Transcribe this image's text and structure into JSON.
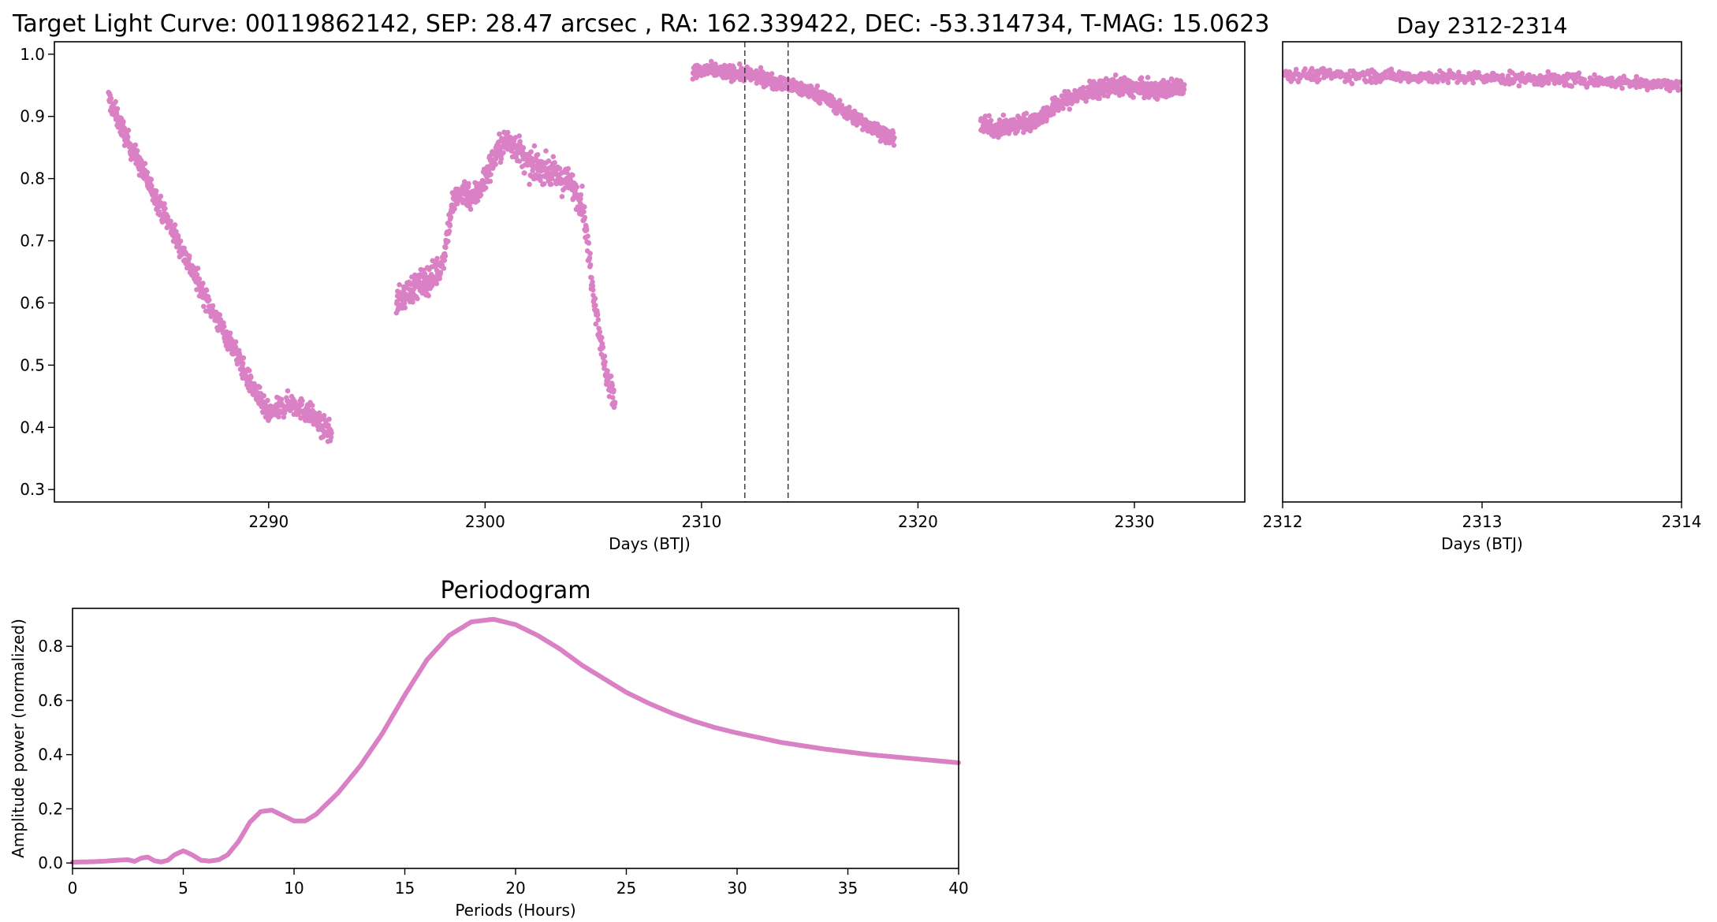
{
  "colors": {
    "points": "#da80c4",
    "axes": "#000000",
    "background": "#ffffff"
  },
  "chart_data": [
    {
      "id": "light-curve",
      "type": "scatter",
      "title": "Target Light Curve: 00119862142, SEP: 28.47 arcsec , RA: 162.339422, DEC: -53.314734, T-MAG: 15.0623",
      "xlabel": "Days (BTJ)",
      "ylabel": "",
      "xlim": [
        2280.1,
        2335.1
      ],
      "ylim": [
        0.28,
        1.02
      ],
      "xticks": [
        2290,
        2300,
        2310,
        2320,
        2330
      ],
      "xtick_labels": [
        "2290",
        "2300",
        "2310",
        "2320",
        "2330"
      ],
      "yticks": [
        0.3,
        0.4,
        0.5,
        0.6,
        0.7,
        0.8,
        0.9,
        1.0
      ],
      "ytick_labels": [
        "0.3",
        "0.4",
        "0.5",
        "0.6",
        "0.7",
        "0.8",
        "0.9",
        "1.0"
      ],
      "vlines": [
        2312,
        2314
      ],
      "grid": false,
      "segments": [
        {
          "x": [
            2282.6,
            2283.5,
            2284.5,
            2285.5,
            2286.5,
            2287.5,
            2288.5,
            2289.0,
            2289.5,
            2290.0,
            2290.5,
            2291.0,
            2291.5,
            2292.0,
            2292.5,
            2292.9
          ],
          "y": [
            0.93,
            0.86,
            0.79,
            0.72,
            0.65,
            0.58,
            0.52,
            0.48,
            0.45,
            0.42,
            0.43,
            0.44,
            0.43,
            0.42,
            0.4,
            0.39
          ],
          "spread": 0.03
        },
        {
          "x": [
            2295.9,
            2296.5,
            2297.0,
            2297.5,
            2298.0,
            2298.5,
            2299.0,
            2299.5,
            2300.0,
            2300.5,
            2301.0,
            2301.5,
            2302.0,
            2302.5,
            2303.0,
            2303.5,
            2304.0,
            2304.5,
            2305.0,
            2305.5,
            2306.0
          ],
          "y": [
            0.6,
            0.62,
            0.63,
            0.64,
            0.66,
            0.76,
            0.78,
            0.77,
            0.8,
            0.84,
            0.86,
            0.85,
            0.82,
            0.82,
            0.81,
            0.8,
            0.79,
            0.76,
            0.62,
            0.5,
            0.44
          ],
          "spread": 0.04
        },
        {
          "x": [
            2309.6,
            2310.5,
            2311.5,
            2312.5,
            2313.5,
            2314.5,
            2315.5,
            2316.5,
            2317.5,
            2318.5,
            2318.9
          ],
          "y": [
            0.97,
            0.975,
            0.97,
            0.965,
            0.955,
            0.945,
            0.935,
            0.91,
            0.89,
            0.87,
            0.86
          ],
          "spread": 0.02
        },
        {
          "x": [
            2322.9,
            2323.5,
            2324.5,
            2325.5,
            2326.5,
            2327.5,
            2328.5,
            2329.0,
            2330.0,
            2331.0,
            2332.3
          ],
          "y": [
            0.89,
            0.88,
            0.885,
            0.895,
            0.92,
            0.935,
            0.945,
            0.95,
            0.945,
            0.94,
            0.95
          ],
          "spread": 0.025
        }
      ]
    },
    {
      "id": "zoom",
      "type": "scatter",
      "title": "Day 2312-2314",
      "xlabel": "Days (BTJ)",
      "ylabel": "",
      "xlim": [
        2312,
        2314
      ],
      "ylim": [
        0.28,
        1.02
      ],
      "xticks": [
        2312,
        2313,
        2314
      ],
      "xtick_labels": [
        "2312",
        "2313",
        "2314"
      ],
      "grid": false,
      "segments": [
        {
          "x": [
            2312.0,
            2312.5,
            2313.0,
            2313.5,
            2314.0
          ],
          "y": [
            0.968,
            0.965,
            0.962,
            0.958,
            0.95
          ],
          "spread": 0.018
        }
      ]
    },
    {
      "id": "periodogram",
      "type": "line",
      "title": "Periodogram",
      "xlabel": "Periods (Hours)",
      "ylabel": "Amplitude power (normalized)",
      "xlim": [
        0,
        40
      ],
      "ylim": [
        -0.02,
        0.94
      ],
      "xticks": [
        0,
        5,
        10,
        15,
        20,
        25,
        30,
        35,
        40
      ],
      "xtick_labels": [
        "0",
        "5",
        "10",
        "15",
        "20",
        "25",
        "30",
        "35",
        "40"
      ],
      "yticks": [
        0.0,
        0.2,
        0.4,
        0.6,
        0.8
      ],
      "ytick_labels": [
        "0.0",
        "0.2",
        "0.4",
        "0.6",
        "0.8"
      ],
      "grid": false,
      "x": [
        0,
        0.5,
        1,
        1.5,
        2,
        2.5,
        2.8,
        3.1,
        3.4,
        3.7,
        4.0,
        4.3,
        4.6,
        5.0,
        5.4,
        5.8,
        6.2,
        6.6,
        7.0,
        7.5,
        8.0,
        8.5,
        9.0,
        9.5,
        10.0,
        10.5,
        11.0,
        12.0,
        13.0,
        14.0,
        15.0,
        16.0,
        17.0,
        18.0,
        19.0,
        20.0,
        21.0,
        22.0,
        23.0,
        24.0,
        25.0,
        26.0,
        27.0,
        28.0,
        29.0,
        30.0,
        32.0,
        34.0,
        36.0,
        38.0,
        40.0
      ],
      "y": [
        0.003,
        0.004,
        0.005,
        0.007,
        0.01,
        0.012,
        0.006,
        0.018,
        0.022,
        0.008,
        0.004,
        0.01,
        0.03,
        0.045,
        0.03,
        0.01,
        0.007,
        0.012,
        0.03,
        0.08,
        0.15,
        0.19,
        0.195,
        0.175,
        0.155,
        0.155,
        0.18,
        0.26,
        0.36,
        0.48,
        0.62,
        0.75,
        0.84,
        0.89,
        0.9,
        0.88,
        0.84,
        0.79,
        0.73,
        0.68,
        0.63,
        0.59,
        0.555,
        0.525,
        0.5,
        0.48,
        0.445,
        0.42,
        0.4,
        0.385,
        0.37
      ]
    }
  ]
}
